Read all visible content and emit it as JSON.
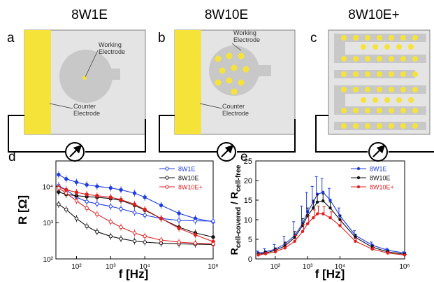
{
  "panels": {
    "a": {
      "letter": "a",
      "title": "8W1E",
      "working_label": "Working\nElectrode",
      "counter_label": "Counter\nElectrode"
    },
    "b": {
      "letter": "b",
      "title": "8W10E",
      "working_label": "Working\nElectrode",
      "counter_label": "Counter\nElectrode"
    },
    "c": {
      "letter": "c",
      "title": "8W10E+"
    },
    "d": {
      "letter": "d"
    },
    "e": {
      "letter": "e"
    }
  },
  "colors": {
    "gold": "#f5e33a",
    "electrode_gray": "#c8c8c8",
    "chip_bg": "#e4e4e4",
    "series_8W1E": "#1f3de0",
    "series_8W10E": "#111111",
    "series_8W10Eplus": "#e02020"
  },
  "icons": [
    "ammeter-icon"
  ],
  "chart_data": [
    {
      "type": "line",
      "panel": "d",
      "xlabel": "f [Hz]",
      "ylabel": "R [Ω]",
      "xscale": "log",
      "yscale": "log",
      "xlim": [
        25,
        1000000
      ],
      "ylim": [
        100,
        50000
      ],
      "xticks": [
        "10²",
        "10³",
        "10⁴",
        "10⁶"
      ],
      "yticks": [
        "10²",
        "10³",
        "10⁴"
      ],
      "legend": [
        "8W1E",
        "8W10E",
        "8W10E+"
      ],
      "legend_position": "top-right",
      "x": [
        30,
        50,
        100,
        200,
        400,
        1000,
        2000,
        5000,
        10000,
        30000,
        100000,
        300000,
        1000000
      ],
      "series": [
        {
          "name": "8W1E",
          "variant": "cell-covered",
          "marker": "filled",
          "color": "#1f3de0",
          "values": [
            21000,
            16000,
            13000,
            11000,
            10000,
            9000,
            8000,
            6500,
            5000,
            3000,
            1800,
            1300,
            1050
          ]
        },
        {
          "name": "8W1E",
          "variant": "cell-free",
          "marker": "open",
          "color": "#1f3de0",
          "values": [
            10500,
            8000,
            5000,
            3800,
            3300,
            2800,
            2400,
            1900,
            1600,
            1300,
            1150,
            1120,
            1100
          ]
        },
        {
          "name": "8W10E",
          "variant": "cell-covered",
          "marker": "filled",
          "color": "#111111",
          "values": [
            7000,
            6000,
            5500,
            5200,
            5000,
            4600,
            4100,
            3000,
            2200,
            1300,
            750,
            520,
            400
          ]
        },
        {
          "name": "8W10E",
          "variant": "cell-free",
          "marker": "open",
          "color": "#111111",
          "values": [
            3200,
            2300,
            1300,
            800,
            560,
            420,
            360,
            310,
            290,
            270,
            260,
            255,
            250
          ]
        },
        {
          "name": "8W10E+",
          "variant": "cell-covered",
          "marker": "filled",
          "color": "#e02020",
          "values": [
            9500,
            8000,
            6800,
            6000,
            5500,
            5000,
            4300,
            3200,
            2300,
            1300,
            700,
            460,
            300
          ]
        },
        {
          "name": "8W10E+",
          "variant": "cell-free",
          "marker": "open",
          "color": "#e02020",
          "values": [
            9000,
            6500,
            4000,
            2500,
            1700,
            1050,
            750,
            520,
            420,
            330,
            290,
            270,
            260
          ]
        }
      ]
    },
    {
      "type": "line",
      "panel": "e",
      "xlabel": "f [Hz]",
      "ylabel": "R_cell-covered / R_cell-free",
      "xscale": "log",
      "xlim": [
        25,
        1000000
      ],
      "ylim": [
        0,
        25
      ],
      "xticks": [
        "10²",
        "10³",
        "10⁴",
        "10⁶"
      ],
      "yticks": [
        "0",
        "5",
        "10",
        "15",
        "20",
        "25"
      ],
      "legend": [
        "8W1E",
        "8W10E",
        "8W10E+"
      ],
      "legend_position": "top-right",
      "x": [
        30,
        50,
        100,
        200,
        400,
        700,
        1000,
        1500,
        2000,
        3000,
        5000,
        10000,
        30000,
        100000,
        300000,
        1000000
      ],
      "series": [
        {
          "name": "8W1E",
          "color": "#1f3de0",
          "values": [
            1.5,
            1.8,
            2.5,
            3.8,
            6.0,
            9.0,
            12.0,
            14.5,
            16.5,
            17.0,
            15.0,
            11.0,
            6.0,
            3.5,
            2.2,
            1.5
          ],
          "err": [
            0.5,
            0.8,
            1.2,
            2.0,
            3.5,
            4.5,
            5.0,
            4.0,
            4.5,
            3.5,
            3.0,
            2.0,
            1.2,
            0.8,
            0.5,
            0.3
          ]
        },
        {
          "name": "8W10E",
          "color": "#111111",
          "values": [
            1.2,
            1.5,
            2.2,
            3.3,
            5.5,
            8.5,
            11.0,
            13.0,
            14.5,
            14.8,
            13.0,
            10.0,
            5.5,
            3.0,
            1.8,
            1.2
          ],
          "err": [
            0.3,
            0.4,
            0.6,
            1.0,
            1.5,
            1.8,
            2.0,
            2.0,
            2.0,
            1.8,
            1.5,
            1.2,
            0.8,
            0.5,
            0.3,
            0.2
          ]
        },
        {
          "name": "8W10E+",
          "color": "#e02020",
          "values": [
            1.0,
            1.3,
            1.8,
            2.8,
            4.5,
            7.0,
            9.0,
            10.5,
            11.5,
            11.5,
            10.5,
            8.5,
            4.5,
            2.5,
            1.5,
            1.0
          ],
          "err": [
            0.3,
            0.4,
            0.6,
            1.0,
            1.5,
            1.8,
            2.0,
            2.0,
            2.0,
            1.8,
            1.5,
            1.2,
            0.8,
            0.5,
            0.3,
            0.2
          ]
        }
      ]
    }
  ]
}
